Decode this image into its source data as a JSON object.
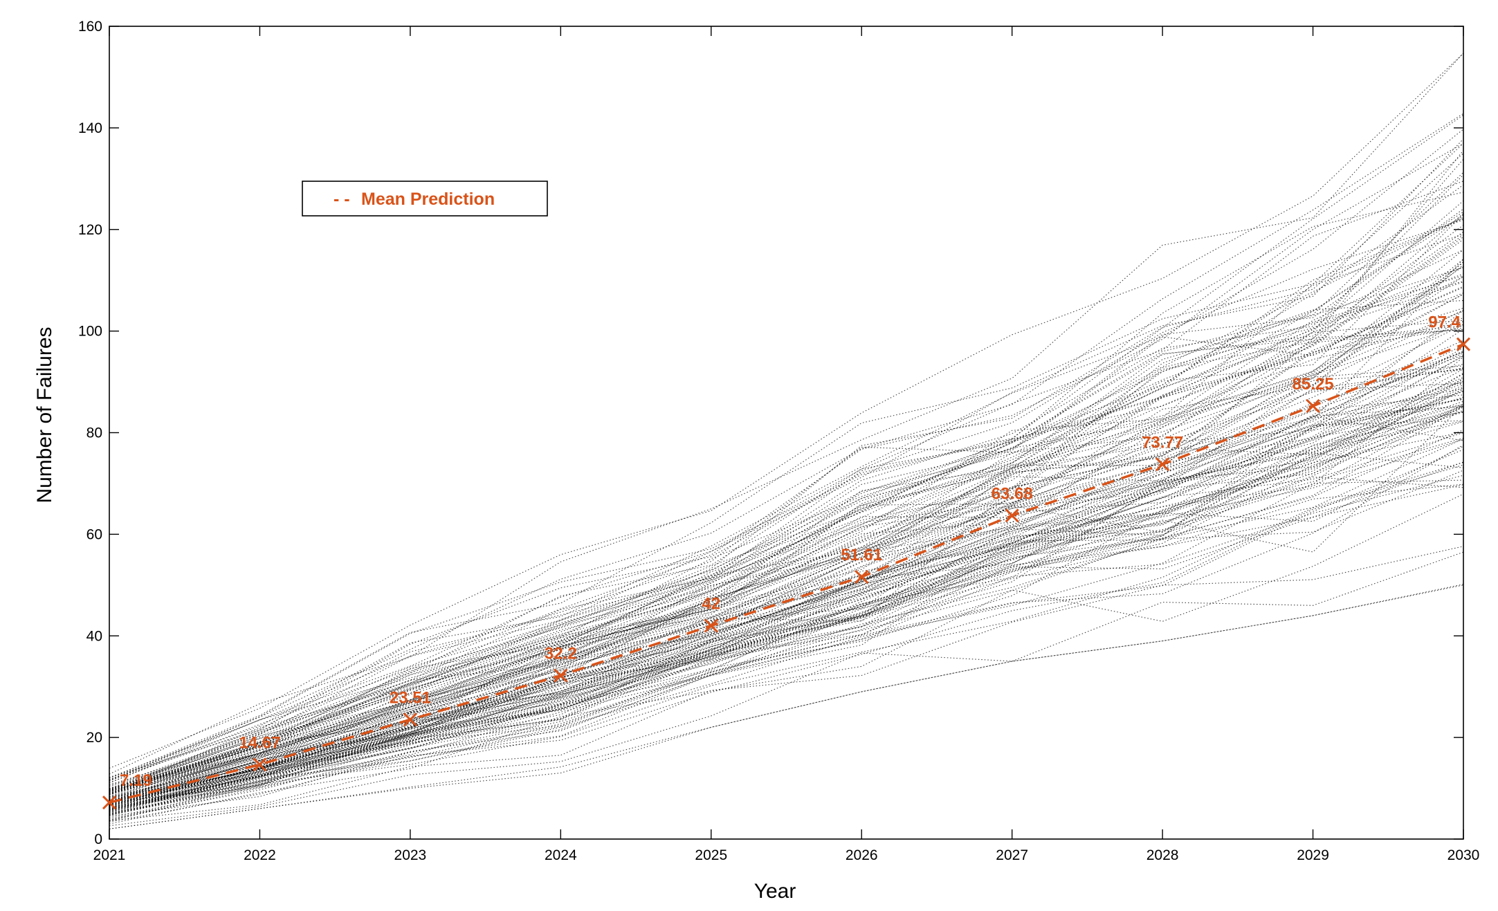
{
  "chart_data": {
    "type": "line",
    "title": "",
    "xlabel": "Year",
    "ylabel": "Number of Failures",
    "xlim": [
      2021,
      2030
    ],
    "ylim": [
      0,
      160
    ],
    "x_ticks": [
      "2021",
      "2022",
      "2023",
      "2024",
      "2025",
      "2026",
      "2027",
      "2028",
      "2029",
      "2030"
    ],
    "y_ticks": [
      "0",
      "20",
      "40",
      "60",
      "80",
      "100",
      "120",
      "140",
      "160"
    ],
    "grid": false,
    "legend": {
      "placement": "upper-left",
      "entries": [
        "Mean Prediction"
      ],
      "marker": "- -"
    },
    "colors": {
      "mean": "#d95319",
      "simulations": "#000000",
      "axes": "#000000"
    },
    "series": [
      {
        "name": "Mean Prediction",
        "x": [
          2021,
          2022,
          2023,
          2024,
          2025,
          2026,
          2027,
          2028,
          2029,
          2030
        ],
        "values": [
          7.19,
          14.67,
          23.51,
          32.2,
          42,
          51.61,
          63.68,
          73.77,
          85.25,
          97.4
        ],
        "labels": [
          "7.19",
          "14.67",
          "23.51",
          "32.2",
          "42",
          "51.61",
          "63.68",
          "73.77",
          "85.25",
          "97.4"
        ],
        "style": "dashed",
        "marker": "x"
      }
    ],
    "simulation_band": {
      "description_count": 150,
      "x": [
        2021,
        2022,
        2023,
        2024,
        2025,
        2026,
        2027,
        2028,
        2029,
        2030
      ],
      "lower": [
        2,
        6,
        10,
        13,
        22,
        29,
        35,
        39,
        44,
        50
      ],
      "upper": [
        14,
        28,
        44,
        56,
        66,
        90,
        100,
        121,
        135,
        160
      ],
      "style": "dotted"
    }
  }
}
